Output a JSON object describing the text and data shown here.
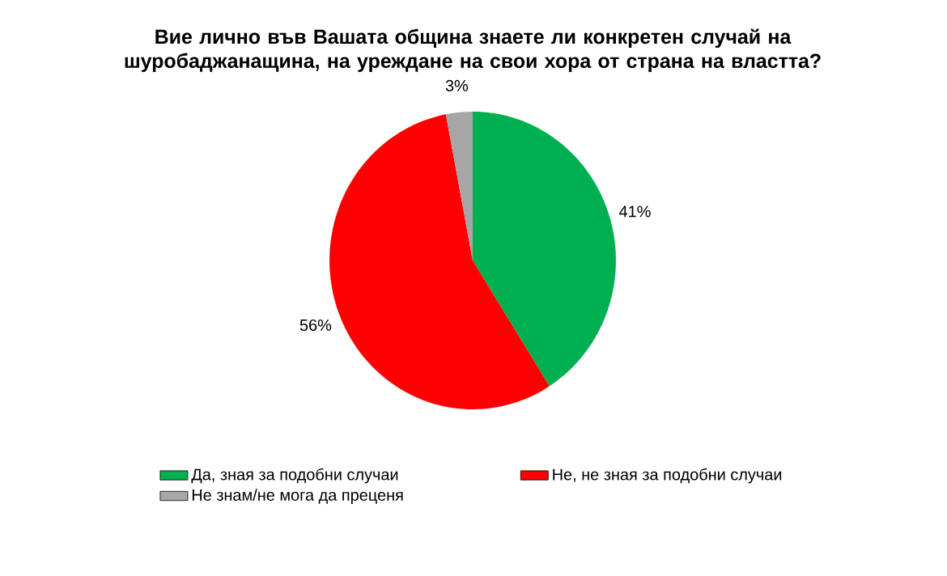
{
  "chart_data": {
    "type": "pie",
    "title": "Вие лично във Вашата община знаете ли конкретен случай на шуробаджанащина, на уреждане на свои хора от страна на властта?",
    "categories": [
      "Да, зная за подобни случаи",
      "Не, не зная за подобни случаи",
      "Не знам/не мога да преценя"
    ],
    "values": [
      41,
      56,
      3
    ],
    "colors": [
      "#00b050",
      "#ff0000",
      "#a6a6a6"
    ],
    "value_labels": [
      "41%",
      "56%",
      "3%"
    ],
    "legend": "bottom"
  }
}
